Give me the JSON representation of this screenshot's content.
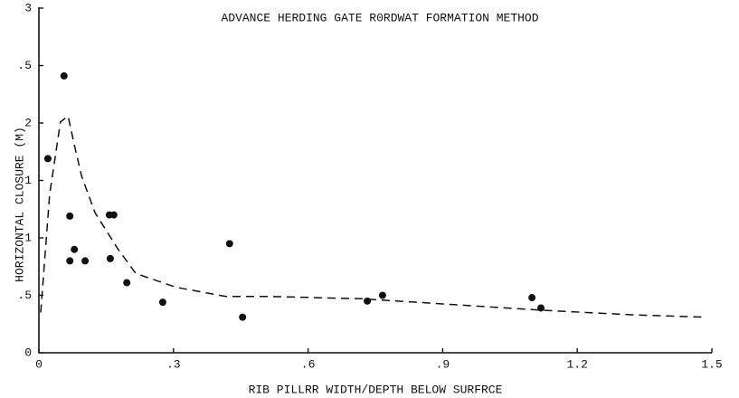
{
  "chart_data": {
    "type": "scatter",
    "title": "ADVANCE HERDING GATE R0RDWAT FORMATION METHOD",
    "x_label": "RIB PILLRR WIDTH/DEPTH BELOW SURFRCE",
    "y_label": "HORIZONTAL CLOSURE (M)",
    "xlim": [
      0,
      1.5
    ],
    "ylim": [
      0,
      3
    ],
    "xticks": [
      0,
      {
        "value": 0.3,
        "label": ".3"
      },
      {
        "value": 0.6,
        "label": ".6"
      },
      {
        "value": 0.9,
        "label": ".9"
      },
      1.2,
      1.5
    ],
    "yticks": [
      0,
      {
        "value": 0.5,
        "label": ".5"
      },
      {
        "value": 1,
        "label": "1"
      },
      {
        "value": 1.5,
        "label": "1"
      },
      2,
      {
        "value": 2.5,
        "label": ".5"
      },
      3
    ],
    "color": "#111111",
    "x": [
      0.02,
      0.056,
      0.069,
      0.079,
      0.069,
      0.103,
      0.157,
      0.167,
      0.159,
      0.196,
      0.276,
      0.425,
      0.454,
      0.732,
      0.766,
      1.099,
      1.119
    ],
    "values": [
      1.69,
      2.41,
      1.19,
      0.9,
      0.8,
      0.8,
      1.2,
      1.2,
      0.82,
      0.61,
      0.44,
      0.95,
      0.31,
      0.45,
      0.5,
      0.48,
      0.39
    ],
    "trend": {
      "x": [
        0.004,
        0.024,
        0.048,
        0.065,
        0.079,
        0.095,
        0.125,
        0.175,
        0.216,
        0.306,
        0.417,
        0.518,
        0.72,
        0.921,
        1.123,
        1.325,
        1.486
      ],
      "values": [
        0.35,
        1.38,
        2.01,
        2.06,
        1.81,
        1.54,
        1.22,
        0.91,
        0.69,
        0.57,
        0.49,
        0.49,
        0.47,
        0.42,
        0.37,
        0.33,
        0.31
      ]
    }
  }
}
